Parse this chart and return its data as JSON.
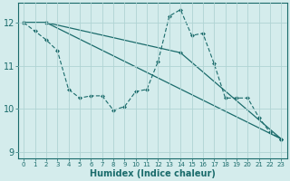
{
  "xlabel": "Humidex (Indice chaleur)",
  "bg_color": "#d4ecec",
  "grid_color": "#b0d4d4",
  "line_color": "#1a6b6b",
  "xlim": [
    -0.5,
    23.5
  ],
  "ylim": [
    8.85,
    12.45
  ],
  "xticks": [
    0,
    1,
    2,
    3,
    4,
    5,
    6,
    7,
    8,
    9,
    10,
    11,
    12,
    13,
    14,
    15,
    16,
    17,
    18,
    19,
    20,
    21,
    22,
    23
  ],
  "yticks": [
    9,
    10,
    11,
    12
  ],
  "line1_x": [
    0,
    1,
    2,
    3,
    4,
    5,
    6,
    7,
    8,
    9,
    10,
    11,
    12,
    13,
    14,
    15,
    16,
    17,
    18,
    19,
    20,
    21,
    22,
    23
  ],
  "line1_y": [
    12.0,
    11.8,
    11.6,
    11.35,
    10.45,
    10.25,
    10.3,
    10.3,
    9.97,
    10.05,
    10.4,
    10.45,
    11.1,
    12.15,
    12.3,
    11.7,
    11.75,
    11.05,
    10.25,
    10.25,
    10.25,
    9.8,
    9.45,
    9.3
  ],
  "line2_x": [
    0,
    2,
    23
  ],
  "line2_y": [
    12.0,
    12.0,
    9.3
  ],
  "line3_x": [
    0,
    2,
    14,
    23
  ],
  "line3_y": [
    12.0,
    12.0,
    11.3,
    9.3
  ]
}
